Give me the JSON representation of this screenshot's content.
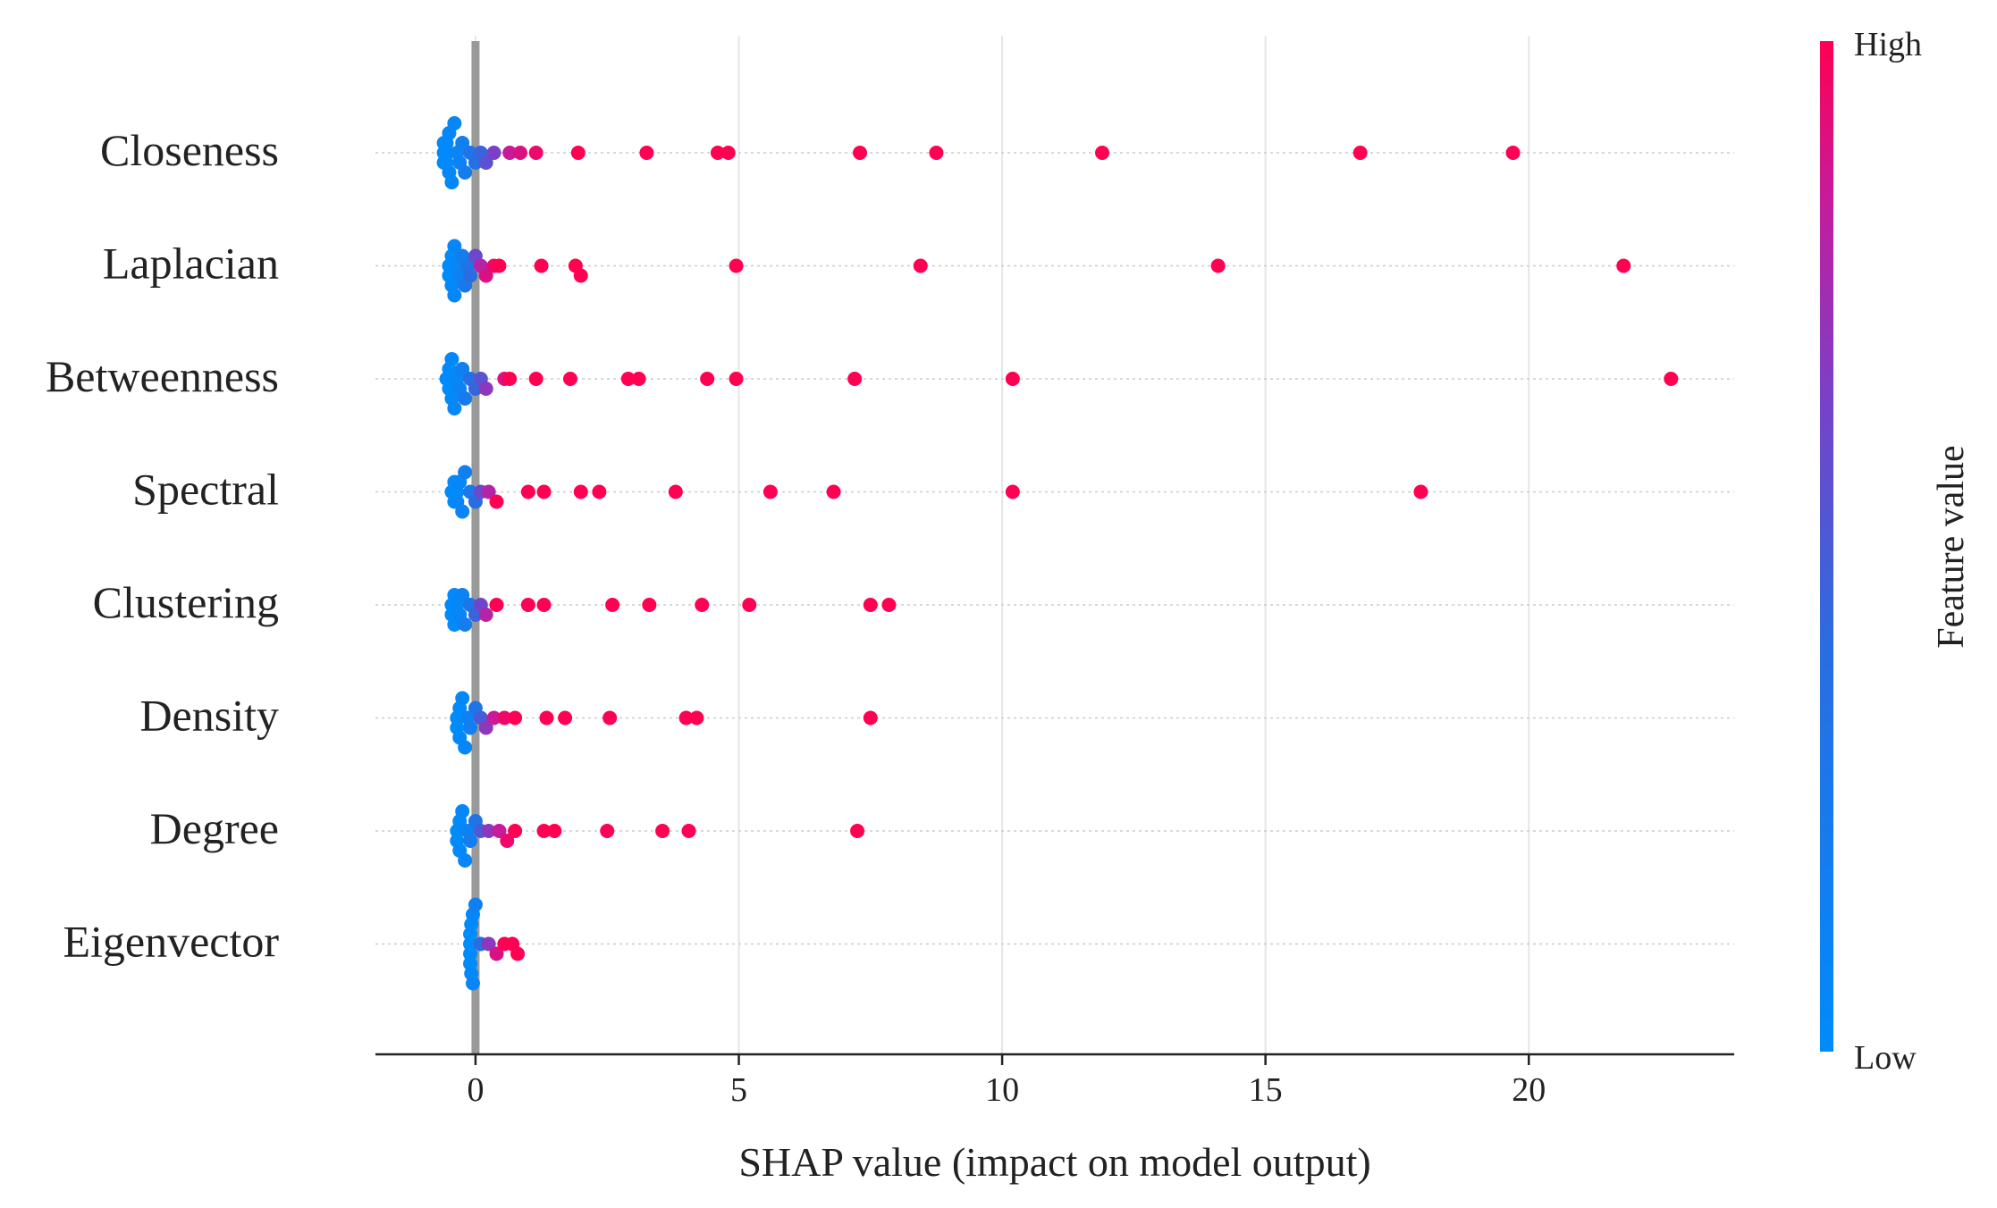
{
  "chart_data": {
    "type": "scatter",
    "subtype": "shap-beeswarm",
    "xlabel": "SHAP value (impact on model output)",
    "xlim": [
      -1.9,
      23.9
    ],
    "xticks": [
      0,
      5,
      10,
      15,
      20
    ],
    "grid": true,
    "colorbar": {
      "label": "Feature value",
      "high": "High",
      "low": "Low"
    },
    "colors": {
      "high": "#ff0052",
      "low": "#008bfb",
      "zero_line": "#999999",
      "grid": "#e6e6e6"
    },
    "features": [
      {
        "name": "Closeness",
        "points": [
          {
            "x": -0.6,
            "v": 0.0
          },
          {
            "x": -0.6,
            "v": 0.0
          },
          {
            "x": -0.6,
            "v": 0.0
          },
          {
            "x": -0.55,
            "v": 0.02
          },
          {
            "x": -0.55,
            "v": 0.02
          },
          {
            "x": -0.55,
            "v": 0.03
          },
          {
            "x": -0.5,
            "v": 0.04
          },
          {
            "x": -0.5,
            "v": 0.05
          },
          {
            "x": -0.45,
            "v": 0.06
          },
          {
            "x": -0.4,
            "v": 0.08
          },
          {
            "x": -0.35,
            "v": 0.1
          },
          {
            "x": -0.3,
            "v": 0.12
          },
          {
            "x": -0.25,
            "v": 0.15
          },
          {
            "x": -0.2,
            "v": 0.2
          },
          {
            "x": -0.1,
            "v": 0.3
          },
          {
            "x": 0.0,
            "v": 0.35
          },
          {
            "x": 0.1,
            "v": 0.45
          },
          {
            "x": 0.2,
            "v": 0.55
          },
          {
            "x": 0.35,
            "v": 0.65
          },
          {
            "x": 0.65,
            "v": 0.85
          },
          {
            "x": 0.85,
            "v": 0.9
          },
          {
            "x": 1.15,
            "v": 0.95
          },
          {
            "x": 1.95,
            "v": 1.0
          },
          {
            "x": 3.25,
            "v": 1.0
          },
          {
            "x": 4.6,
            "v": 1.0
          },
          {
            "x": 4.8,
            "v": 1.0
          },
          {
            "x": 7.3,
            "v": 1.0
          },
          {
            "x": 8.75,
            "v": 1.0
          },
          {
            "x": 11.9,
            "v": 1.0
          },
          {
            "x": 16.8,
            "v": 1.0
          },
          {
            "x": 19.7,
            "v": 1.0
          }
        ]
      },
      {
        "name": "Laplacian",
        "points": [
          {
            "x": -0.5,
            "v": 0.0
          },
          {
            "x": -0.5,
            "v": 0.0
          },
          {
            "x": -0.45,
            "v": 0.02
          },
          {
            "x": -0.45,
            "v": 0.03
          },
          {
            "x": -0.4,
            "v": 0.05
          },
          {
            "x": -0.4,
            "v": 0.06
          },
          {
            "x": -0.35,
            "v": 0.1
          },
          {
            "x": -0.3,
            "v": 0.14
          },
          {
            "x": -0.25,
            "v": 0.2
          },
          {
            "x": -0.2,
            "v": 0.25
          },
          {
            "x": -0.15,
            "v": 0.3
          },
          {
            "x": -0.1,
            "v": 0.4
          },
          {
            "x": 0.0,
            "v": 0.6
          },
          {
            "x": 0.1,
            "v": 0.8
          },
          {
            "x": 0.2,
            "v": 0.9
          },
          {
            "x": 0.35,
            "v": 0.95
          },
          {
            "x": 0.45,
            "v": 1.0
          },
          {
            "x": 1.25,
            "v": 1.0
          },
          {
            "x": 1.9,
            "v": 1.0
          },
          {
            "x": 2.0,
            "v": 1.0
          },
          {
            "x": 4.95,
            "v": 1.0
          },
          {
            "x": 8.45,
            "v": 1.0
          },
          {
            "x": 14.1,
            "v": 1.0
          },
          {
            "x": 21.8,
            "v": 1.0
          }
        ]
      },
      {
        "name": "Betweenness",
        "points": [
          {
            "x": -0.55,
            "v": 0.0
          },
          {
            "x": -0.5,
            "v": 0.0
          },
          {
            "x": -0.5,
            "v": 0.02
          },
          {
            "x": -0.45,
            "v": 0.03
          },
          {
            "x": -0.45,
            "v": 0.04
          },
          {
            "x": -0.4,
            "v": 0.06
          },
          {
            "x": -0.35,
            "v": 0.08
          },
          {
            "x": -0.3,
            "v": 0.12
          },
          {
            "x": -0.25,
            "v": 0.16
          },
          {
            "x": -0.2,
            "v": 0.22
          },
          {
            "x": -0.1,
            "v": 0.35
          },
          {
            "x": 0.0,
            "v": 0.45
          },
          {
            "x": 0.1,
            "v": 0.55
          },
          {
            "x": 0.2,
            "v": 0.7
          },
          {
            "x": 0.55,
            "v": 0.9
          },
          {
            "x": 0.65,
            "v": 1.0
          },
          {
            "x": 1.15,
            "v": 1.0
          },
          {
            "x": 1.8,
            "v": 1.0
          },
          {
            "x": 2.9,
            "v": 1.0
          },
          {
            "x": 3.1,
            "v": 1.0
          },
          {
            "x": 4.4,
            "v": 1.0
          },
          {
            "x": 4.95,
            "v": 1.0
          },
          {
            "x": 7.2,
            "v": 1.0
          },
          {
            "x": 10.2,
            "v": 1.0
          },
          {
            "x": 22.7,
            "v": 1.0
          }
        ]
      },
      {
        "name": "Spectral",
        "points": [
          {
            "x": -0.45,
            "v": 0.0
          },
          {
            "x": -0.4,
            "v": 0.0
          },
          {
            "x": -0.4,
            "v": 0.02
          },
          {
            "x": -0.35,
            "v": 0.03
          },
          {
            "x": -0.35,
            "v": 0.05
          },
          {
            "x": -0.3,
            "v": 0.07
          },
          {
            "x": -0.25,
            "v": 0.1
          },
          {
            "x": -0.2,
            "v": 0.15
          },
          {
            "x": -0.1,
            "v": 0.25
          },
          {
            "x": 0.0,
            "v": 0.4
          },
          {
            "x": 0.1,
            "v": 0.6
          },
          {
            "x": 0.25,
            "v": 0.8
          },
          {
            "x": 0.4,
            "v": 1.0
          },
          {
            "x": 1.0,
            "v": 1.0
          },
          {
            "x": 1.3,
            "v": 1.0
          },
          {
            "x": 2.0,
            "v": 1.0
          },
          {
            "x": 2.35,
            "v": 1.0
          },
          {
            "x": 3.8,
            "v": 1.0
          },
          {
            "x": 5.6,
            "v": 1.0
          },
          {
            "x": 6.8,
            "v": 1.0
          },
          {
            "x": 10.2,
            "v": 1.0
          },
          {
            "x": 17.95,
            "v": 1.0
          }
        ]
      },
      {
        "name": "Clustering",
        "points": [
          {
            "x": -0.45,
            "v": 0.0
          },
          {
            "x": -0.45,
            "v": 0.0
          },
          {
            "x": -0.4,
            "v": 0.02
          },
          {
            "x": -0.4,
            "v": 0.03
          },
          {
            "x": -0.35,
            "v": 0.05
          },
          {
            "x": -0.3,
            "v": 0.08
          },
          {
            "x": -0.25,
            "v": 0.12
          },
          {
            "x": -0.2,
            "v": 0.18
          },
          {
            "x": -0.1,
            "v": 0.28
          },
          {
            "x": 0.0,
            "v": 0.45
          },
          {
            "x": 0.1,
            "v": 0.62
          },
          {
            "x": 0.2,
            "v": 0.8
          },
          {
            "x": 0.4,
            "v": 1.0
          },
          {
            "x": 1.0,
            "v": 1.0
          },
          {
            "x": 1.3,
            "v": 1.0
          },
          {
            "x": 2.6,
            "v": 1.0
          },
          {
            "x": 3.3,
            "v": 1.0
          },
          {
            "x": 4.3,
            "v": 1.0
          },
          {
            "x": 5.2,
            "v": 1.0
          },
          {
            "x": 7.5,
            "v": 1.0
          },
          {
            "x": 7.85,
            "v": 1.0
          }
        ]
      },
      {
        "name": "Density",
        "points": [
          {
            "x": -0.35,
            "v": 0.0
          },
          {
            "x": -0.35,
            "v": 0.0
          },
          {
            "x": -0.3,
            "v": 0.02
          },
          {
            "x": -0.3,
            "v": 0.03
          },
          {
            "x": -0.25,
            "v": 0.05
          },
          {
            "x": -0.2,
            "v": 0.08
          },
          {
            "x": -0.15,
            "v": 0.12
          },
          {
            "x": -0.1,
            "v": 0.18
          },
          {
            "x": 0.0,
            "v": 0.3
          },
          {
            "x": 0.1,
            "v": 0.5
          },
          {
            "x": 0.2,
            "v": 0.7
          },
          {
            "x": 0.35,
            "v": 0.85
          },
          {
            "x": 0.55,
            "v": 0.95
          },
          {
            "x": 0.75,
            "v": 1.0
          },
          {
            "x": 1.35,
            "v": 1.0
          },
          {
            "x": 1.7,
            "v": 1.0
          },
          {
            "x": 2.55,
            "v": 1.0
          },
          {
            "x": 4.0,
            "v": 1.0
          },
          {
            "x": 4.2,
            "v": 1.0
          },
          {
            "x": 7.5,
            "v": 1.0
          }
        ]
      },
      {
        "name": "Degree",
        "points": [
          {
            "x": -0.35,
            "v": 0.0
          },
          {
            "x": -0.35,
            "v": 0.0
          },
          {
            "x": -0.3,
            "v": 0.02
          },
          {
            "x": -0.3,
            "v": 0.03
          },
          {
            "x": -0.25,
            "v": 0.05
          },
          {
            "x": -0.2,
            "v": 0.08
          },
          {
            "x": -0.15,
            "v": 0.12
          },
          {
            "x": -0.1,
            "v": 0.18
          },
          {
            "x": 0.0,
            "v": 0.3
          },
          {
            "x": 0.1,
            "v": 0.5
          },
          {
            "x": 0.25,
            "v": 0.7
          },
          {
            "x": 0.45,
            "v": 0.85
          },
          {
            "x": 0.6,
            "v": 0.95
          },
          {
            "x": 0.75,
            "v": 1.0
          },
          {
            "x": 1.3,
            "v": 1.0
          },
          {
            "x": 1.5,
            "v": 1.0
          },
          {
            "x": 2.5,
            "v": 1.0
          },
          {
            "x": 3.55,
            "v": 1.0
          },
          {
            "x": 4.05,
            "v": 1.0
          },
          {
            "x": 7.25,
            "v": 1.0
          }
        ]
      },
      {
        "name": "Eigenvector",
        "points": [
          {
            "x": -0.1,
            "v": 0.0
          },
          {
            "x": -0.1,
            "v": 0.0
          },
          {
            "x": -0.1,
            "v": 0.0
          },
          {
            "x": -0.1,
            "v": 0.0
          },
          {
            "x": -0.08,
            "v": 0.02
          },
          {
            "x": -0.08,
            "v": 0.03
          },
          {
            "x": -0.05,
            "v": 0.05
          },
          {
            "x": -0.05,
            "v": 0.08
          },
          {
            "x": 0.0,
            "v": 0.15
          },
          {
            "x": 0.1,
            "v": 0.4
          },
          {
            "x": 0.25,
            "v": 0.7
          },
          {
            "x": 0.4,
            "v": 0.9
          },
          {
            "x": 0.55,
            "v": 1.0
          },
          {
            "x": 0.7,
            "v": 1.0
          },
          {
            "x": 0.8,
            "v": 1.0
          }
        ]
      }
    ]
  }
}
